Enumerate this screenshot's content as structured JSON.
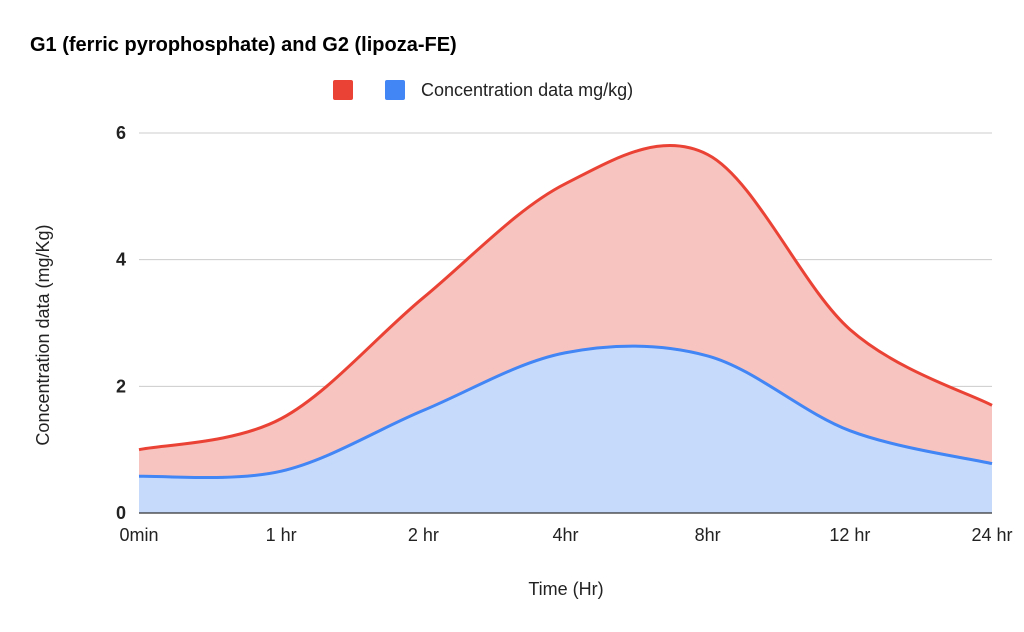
{
  "chart_data": {
    "type": "area",
    "title": "G1 (ferric pyrophosphate) and G2 (lipoza-FE)",
    "xlabel": "Time (Hr)",
    "ylabel": "Concentration data (mg/Kg)",
    "categories": [
      "0min",
      "1 hr",
      "2 hr",
      "4hr",
      "8hr",
      "12 hr",
      "24 hr"
    ],
    "ylim": [
      0,
      6
    ],
    "yticks": [
      0,
      2,
      4,
      6
    ],
    "grid": true,
    "stacked": true,
    "legend_position": "top-center",
    "series": [
      {
        "name": "",
        "color": "#ea4335",
        "fill": "#f8c4c0",
        "values": [
          0.42,
          0.83,
          1.78,
          2.67,
          3.18,
          1.6,
          0.92
        ]
      },
      {
        "name": "Concentration data mg/kg)",
        "color": "#4285f4",
        "fill": "#c6dafc",
        "values": [
          0.58,
          0.66,
          1.62,
          2.53,
          2.48,
          1.3,
          0.78
        ]
      }
    ]
  }
}
